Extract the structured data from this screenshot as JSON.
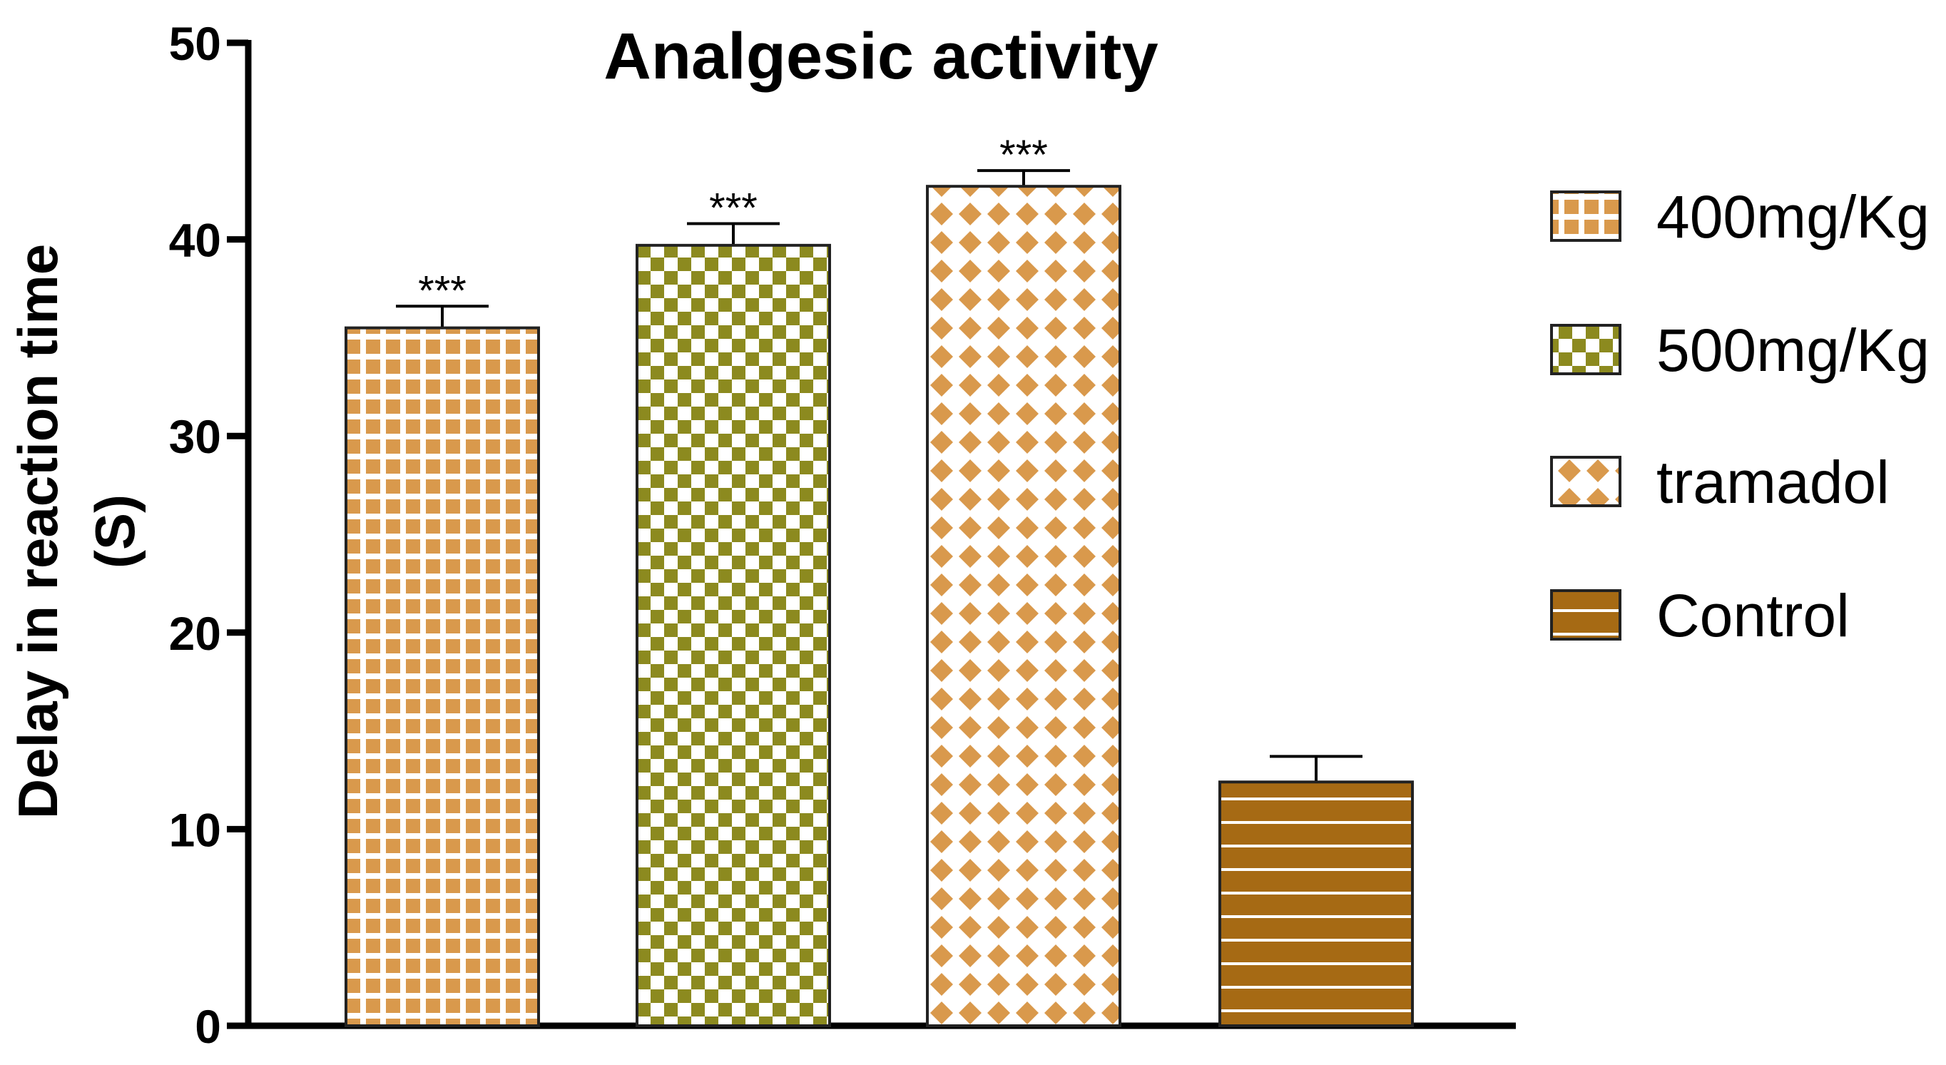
{
  "chart_data": {
    "type": "bar",
    "title": "Analgesic activity",
    "ylabel_line1": "Delay in reaction time",
    "ylabel_line2": "(S)",
    "xlabel": "",
    "ylim": [
      0,
      50
    ],
    "yticks": [
      0,
      10,
      20,
      30,
      40,
      50
    ],
    "legend_position": "right",
    "categories": [
      "400mg/Kg",
      "500mg/Kg",
      "tramadol",
      "Control"
    ],
    "values": [
      35.5,
      39.7,
      42.7,
      12.4
    ],
    "errors": [
      1.1,
      1.1,
      0.8,
      1.3
    ],
    "significance": [
      "***",
      "***",
      "***",
      ""
    ],
    "series_styles": [
      {
        "name": "400mg/Kg",
        "pattern": "dots-grid",
        "color": "#D9994C"
      },
      {
        "name": "500mg/Kg",
        "pattern": "checker",
        "color": "#8C8A1F"
      },
      {
        "name": "tramadol",
        "pattern": "diamonds",
        "color": "#D9994C"
      },
      {
        "name": "Control",
        "pattern": "stripes",
        "color": "#A66A14"
      }
    ]
  }
}
